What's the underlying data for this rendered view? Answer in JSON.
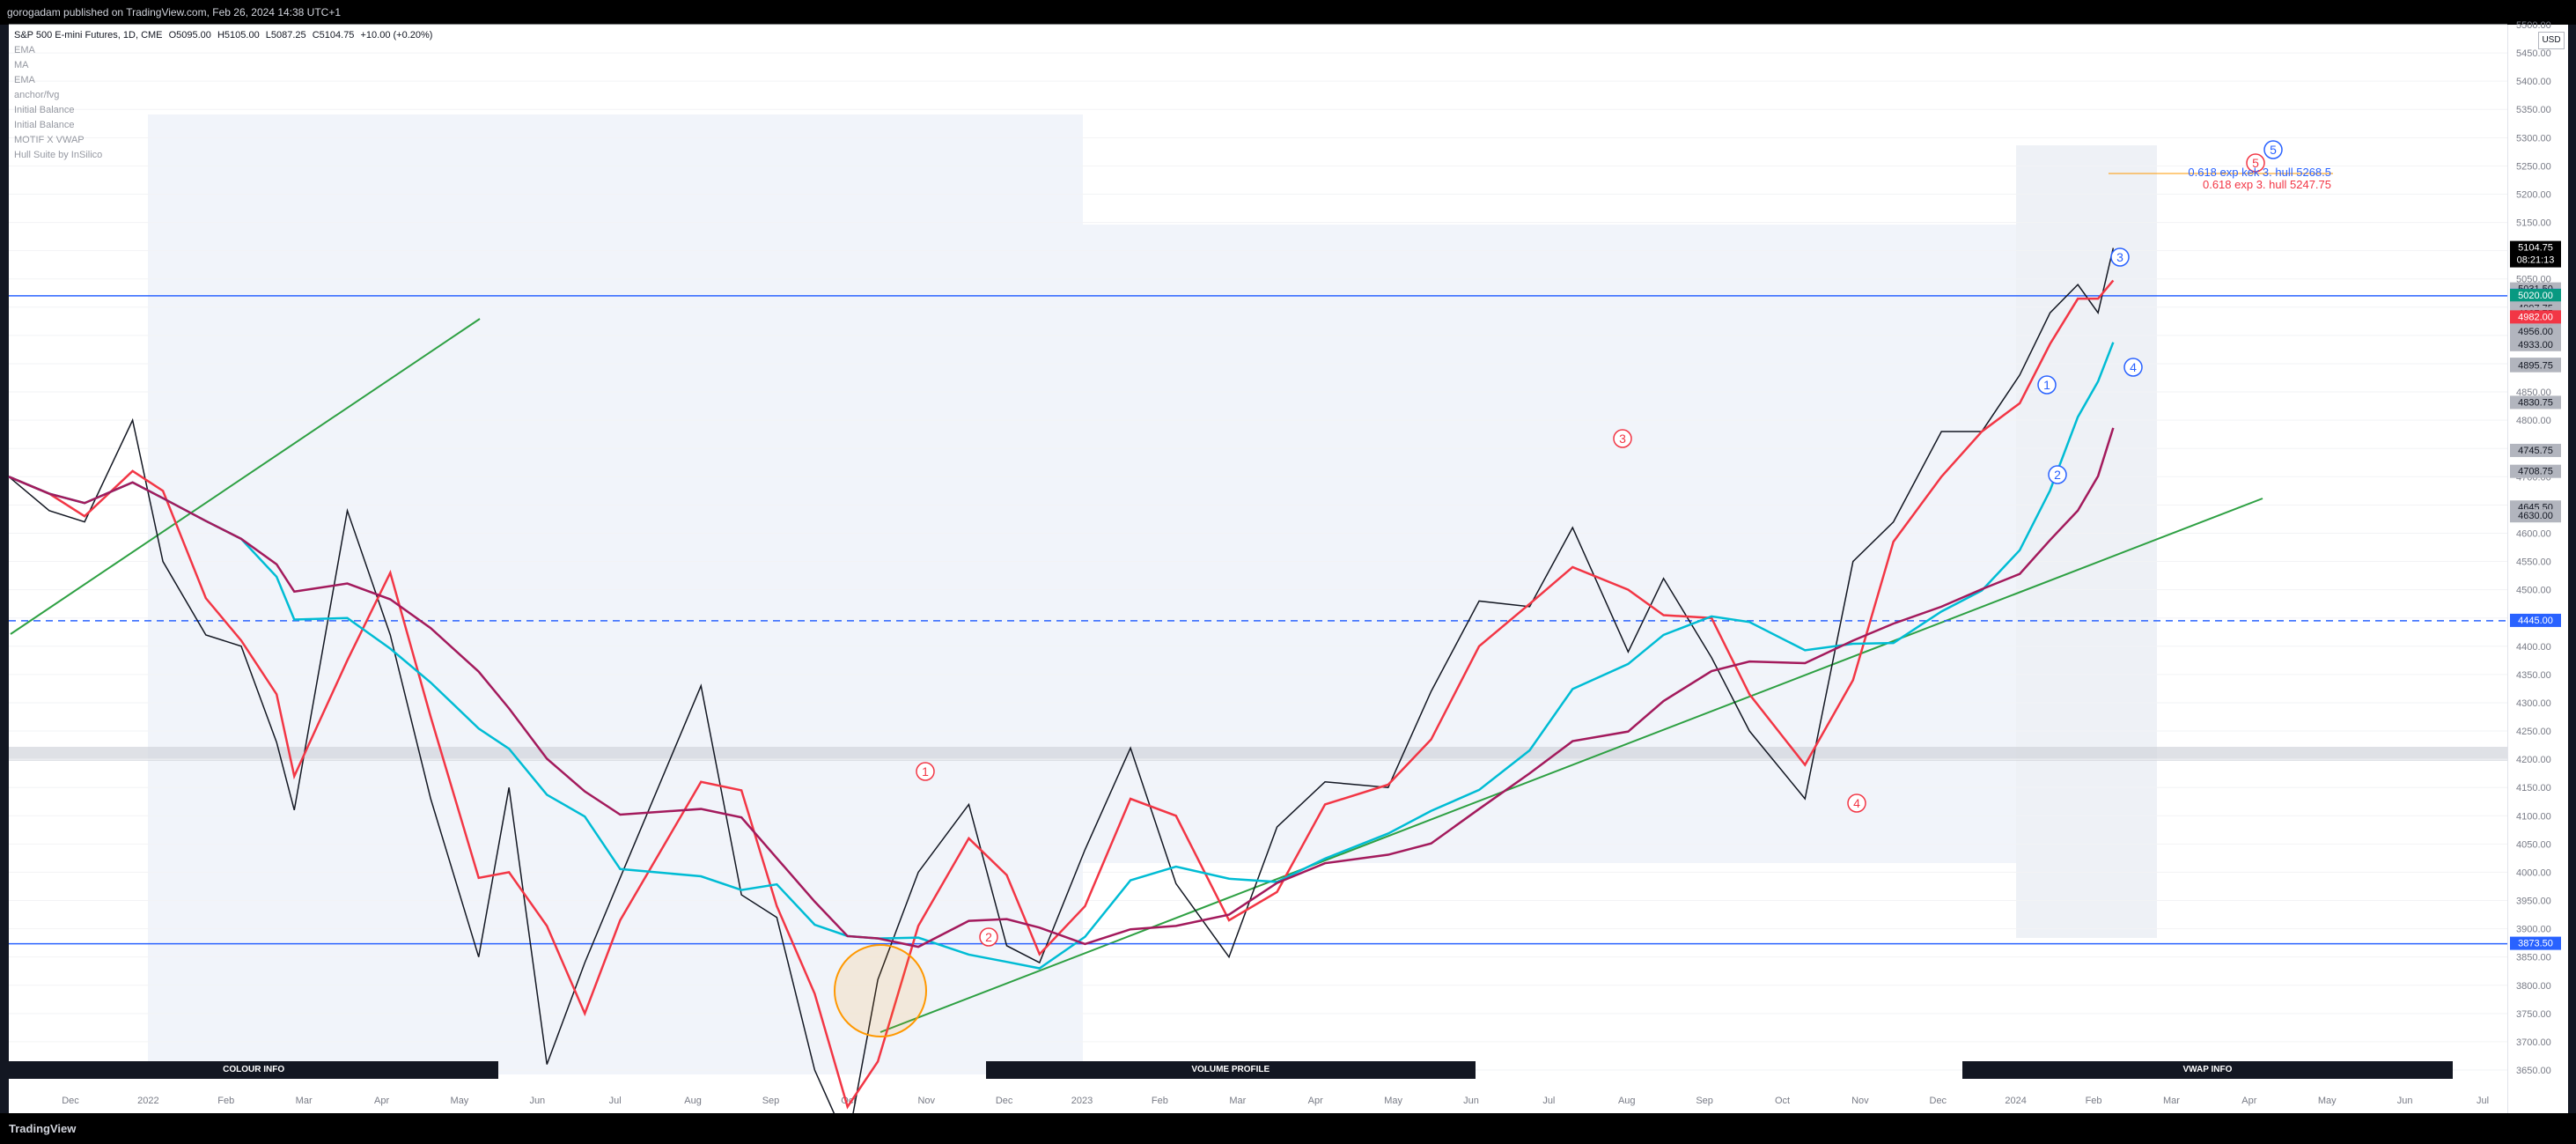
{
  "header": {
    "published": "gorogadam published on TradingView.com, Feb 26, 2024 14:38 UTC+1"
  },
  "legend": {
    "symbol": "S&P 500 E-mini Futures, 1D, CME",
    "o": "O5095.00",
    "h": "H5105.00",
    "l": "L5087.25",
    "c": "C5104.75",
    "chg": "+10.00 (+0.20%)",
    "indicators": [
      "EMA",
      "MA",
      "EMA",
      "anchor/fvg",
      "Initial Balance",
      "Initial Balance",
      "MOTIF X VWAP",
      "Hull Suite by InSilico"
    ]
  },
  "price_scale": {
    "currency": "USD",
    "labels": [
      {
        "text": "5104.75",
        "sub": "08:21:13",
        "price": 5104.75,
        "bg": "#000000",
        "fg": "#ffffff"
      },
      {
        "text": "5031.50",
        "price": 5031.5,
        "bg": "#b2b5be",
        "fg": "#131722"
      },
      {
        "text": "5020.25",
        "price": 5020.25,
        "bg": "#2962ff",
        "fg": "#ffffff"
      },
      {
        "text": "5020.00",
        "price": 5020.0,
        "bg": "#089981",
        "fg": "#ffffff"
      },
      {
        "text": "4997.75",
        "price": 4997.75,
        "bg": "#b2b5be",
        "fg": "#131722"
      },
      {
        "text": "4987.75",
        "price": 4987.75,
        "bg": "#b2b5be",
        "fg": "#131722"
      },
      {
        "text": "4987.75",
        "price": 4987.75,
        "bg": "#b2b5be",
        "fg": "#131722",
        "offset": 1
      },
      {
        "text": "4982.00",
        "price": 4982.0,
        "bg": "#f23645",
        "fg": "#ffffff"
      },
      {
        "text": "4956.00",
        "price": 4956.0,
        "bg": "#b2b5be",
        "fg": "#131722"
      },
      {
        "text": "4933.00",
        "price": 4933.0,
        "bg": "#b2b5be",
        "fg": "#131722"
      },
      {
        "text": "4898.25",
        "price": 4898.25,
        "bg": "#b2b5be",
        "fg": "#131722"
      },
      {
        "text": "4895.75",
        "price": 4895.75,
        "bg": "#b2b5be",
        "fg": "#131722"
      },
      {
        "text": "4830.75",
        "price": 4830.75,
        "bg": "#b2b5be",
        "fg": "#131722"
      },
      {
        "text": "4745.75",
        "price": 4745.75,
        "bg": "#b2b5be",
        "fg": "#131722"
      },
      {
        "text": "4708.75",
        "price": 4708.75,
        "bg": "#b2b5be",
        "fg": "#131722"
      },
      {
        "text": "4645.50",
        "price": 4645.5,
        "bg": "#b2b5be",
        "fg": "#131722"
      },
      {
        "text": "4630.00",
        "price": 4630.0,
        "bg": "#b2b5be",
        "fg": "#131722"
      },
      {
        "text": "4445.00",
        "price": 4445.0,
        "bg": "#2962ff",
        "fg": "#ffffff"
      },
      {
        "text": "3873.50",
        "price": 3873.5,
        "bg": "#2962ff",
        "fg": "#ffffff"
      }
    ]
  },
  "bars": [
    {
      "label": "COLOUR INFO",
      "x0": 0.0,
      "x1": 0.196
    },
    {
      "label": "VOLUME PROFILE",
      "x0": 0.391,
      "x1": 0.587
    },
    {
      "label": "VWAP INFO",
      "x0": 0.782,
      "x1": 0.978
    }
  ],
  "footer": {
    "logo": "TradingView"
  },
  "colors": {
    "up": "#089981",
    "down": "#131722",
    "ema_fast": "#f23645",
    "ema_slow": "#00bcd4",
    "ma": "#a31a5c",
    "trend": "#2ea043",
    "level_blue": "#2962ff",
    "fib": "#ff9800"
  },
  "chart_data": {
    "type": "line",
    "title": "S&P 500 E-mini Futures, 1D, CME",
    "xlabel": "",
    "ylabel": "",
    "ylim": [
      3650,
      5500
    ],
    "x_ticks": [
      "Dec",
      "2022",
      "Feb",
      "Mar",
      "Apr",
      "May",
      "Jun",
      "Jul",
      "Aug",
      "Sep",
      "Oct",
      "Nov",
      "Dec",
      "2023",
      "Feb",
      "Mar",
      "Apr",
      "May",
      "Jun",
      "Jul",
      "Aug",
      "Sep",
      "Oct",
      "Nov",
      "Dec",
      "2024",
      "Feb",
      "Mar",
      "Apr",
      "May",
      "Jun",
      "Jul"
    ],
    "y_ticks": [
      3650,
      3700,
      3750,
      3800,
      3850,
      3900,
      3950,
      4000,
      4050,
      4100,
      4150,
      4200,
      4250,
      4300,
      4350,
      4400,
      4450,
      4500,
      4550,
      4600,
      4650,
      4700,
      4750,
      4800,
      4850,
      4900,
      4950,
      5000,
      5050,
      5100,
      5150,
      5200,
      5250,
      5300,
      5350,
      5400,
      5450,
      5500
    ],
    "y_tick_labels": [
      "3650.00",
      "3700.00",
      "3750.00",
      "3800.00",
      "3850.00",
      "3900.00",
      "3950.00",
      "4000.00",
      "4050.00",
      "4100.00",
      "4150.00",
      "4200.00",
      "4250.00",
      "4300.00",
      "4350.00",
      "4400.00",
      "4450.00",
      "4500.00",
      "4550.00",
      "4600.00",
      "4650.00",
      "4700.00",
      "4750.00",
      "4800.00",
      "4850.00",
      "4900.00",
      "4950.00",
      "5000.00",
      "5050.00",
      "5100.00",
      "5150.00",
      "5200.00",
      "5250.00",
      "5300.00",
      "5350.00",
      "5400.00",
      "5450.00",
      "5500.00"
    ],
    "price": {
      "x": [
        "2021-11-15",
        "2021-12-01",
        "2021-12-15",
        "2022-01-03",
        "2022-01-15",
        "2022-02-01",
        "2022-02-15",
        "2022-03-01",
        "2022-03-08",
        "2022-03-29",
        "2022-04-15",
        "2022-05-01",
        "2022-05-20",
        "2022-06-01",
        "2022-06-16",
        "2022-07-01",
        "2022-07-15",
        "2022-08-16",
        "2022-09-01",
        "2022-09-15",
        "2022-09-30",
        "2022-10-13",
        "2022-10-25",
        "2022-11-10",
        "2022-11-30",
        "2022-12-15",
        "2022-12-28",
        "2023-01-15",
        "2023-02-02",
        "2023-02-20",
        "2023-03-13",
        "2023-04-01",
        "2023-04-20",
        "2023-05-15",
        "2023-06-01",
        "2023-06-20",
        "2023-07-10",
        "2023-07-27",
        "2023-08-18",
        "2023-09-01",
        "2023-09-20",
        "2023-10-05",
        "2023-10-27",
        "2023-11-15",
        "2023-12-01",
        "2023-12-20",
        "2024-01-05",
        "2024-01-20",
        "2024-02-01",
        "2024-02-12",
        "2024-02-20",
        "2024-02-26"
      ],
      "values": [
        4700,
        4640,
        4620,
        4800,
        4550,
        4420,
        4400,
        4230,
        4110,
        4640,
        4420,
        4130,
        3850,
        4150,
        3660,
        3840,
        3990,
        4330,
        3960,
        3920,
        3650,
        3520,
        3810,
        4000,
        4120,
        3870,
        3840,
        4040,
        4220,
        3980,
        3850,
        4080,
        4160,
        4150,
        4320,
        4480,
        4470,
        4610,
        4390,
        4520,
        4380,
        4250,
        4130,
        4550,
        4620,
        4780,
        4780,
        4880,
        4990,
        5040,
        4990,
        5104.75
      ]
    },
    "annotations": [
      {
        "text": "0.618 exp kek 3. hull 5268.5",
        "color": "#2962ff"
      },
      {
        "text": "0.618 exp 3. hull 5247.75",
        "color": "#f23645"
      }
    ],
    "wave_labels": [
      {
        "text": "1",
        "color": "#f23645"
      },
      {
        "text": "2",
        "color": "#f23645"
      },
      {
        "text": "3",
        "color": "#f23645"
      },
      {
        "text": "4",
        "color": "#f23645"
      },
      {
        "text": "5",
        "color": "#f23645"
      },
      {
        "text": "1",
        "color": "#2962ff"
      },
      {
        "text": "2",
        "color": "#2962ff"
      },
      {
        "text": "3",
        "color": "#2962ff"
      },
      {
        "text": "4",
        "color": "#2962ff"
      },
      {
        "text": "5",
        "color": "#2962ff"
      }
    ]
  }
}
